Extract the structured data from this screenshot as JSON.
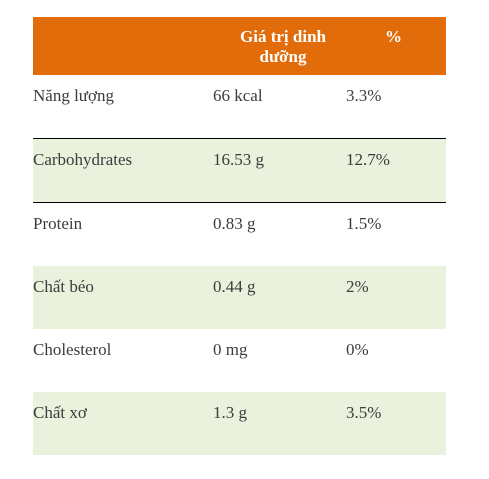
{
  "header": {
    "value_label": "Giá trị dinh dưỡng",
    "percent_label": "%"
  },
  "rows": [
    {
      "name": "Năng lượng",
      "value": "66 kcal",
      "percent": "3.3%"
    },
    {
      "name": "Carbohydrates",
      "value": "16.53 g",
      "percent": "12.7%"
    },
    {
      "name": "Protein",
      "value": "0.83 g",
      "percent": "1.5%"
    },
    {
      "name": "Chất béo",
      "value": "0.44 g",
      "percent": "2%"
    },
    {
      "name": "Cholesterol",
      "value": "0 mg",
      "percent": "0%"
    },
    {
      "name": "Chất xơ",
      "value": "1.3 g",
      "percent": "3.5%"
    }
  ],
  "colors": {
    "header_bg": "#e36c0a",
    "shaded_row_bg": "#eaf1dd",
    "header_text": "#ffffff"
  }
}
